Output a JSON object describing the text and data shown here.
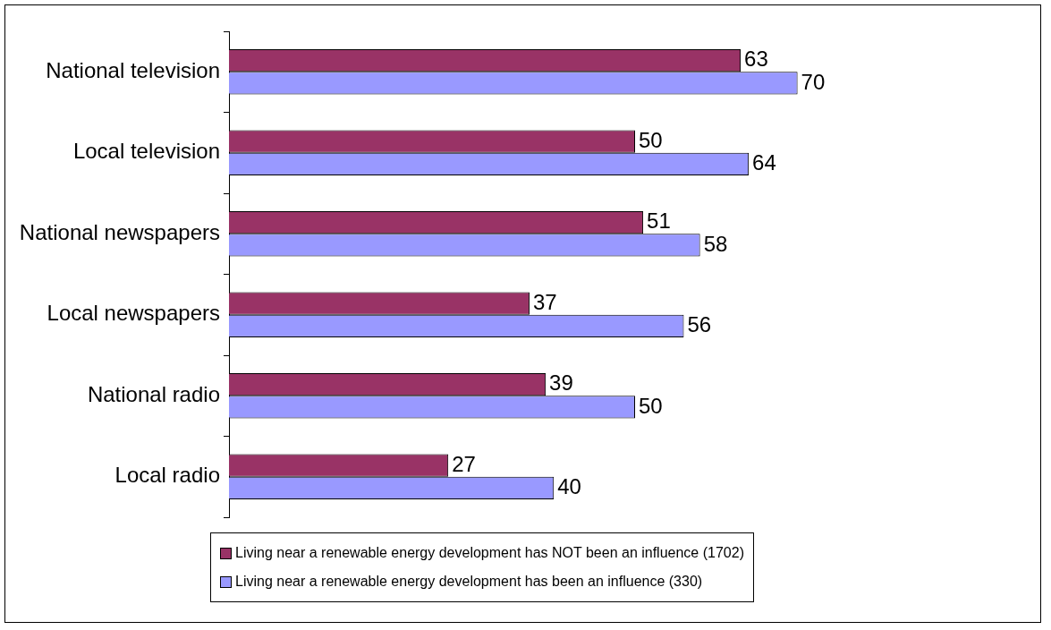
{
  "chart_data": {
    "type": "bar",
    "orientation": "horizontal",
    "categories": [
      "National television",
      "Local television",
      "National newspapers",
      "Local newspapers",
      "National radio",
      "Local radio"
    ],
    "series": [
      {
        "name": "Living near a renewable energy development has NOT been an influence (1702)",
        "color": "#993366",
        "values": [
          63,
          50,
          51,
          37,
          39,
          27
        ]
      },
      {
        "name": "Living near a renewable energy development has been an influence (330)",
        "color": "#9999ff",
        "values": [
          70,
          64,
          58,
          56,
          50,
          40
        ]
      }
    ],
    "xlim": [
      0,
      100
    ],
    "tick_labels": "y",
    "data_labels": true,
    "legend": "bottom"
  }
}
